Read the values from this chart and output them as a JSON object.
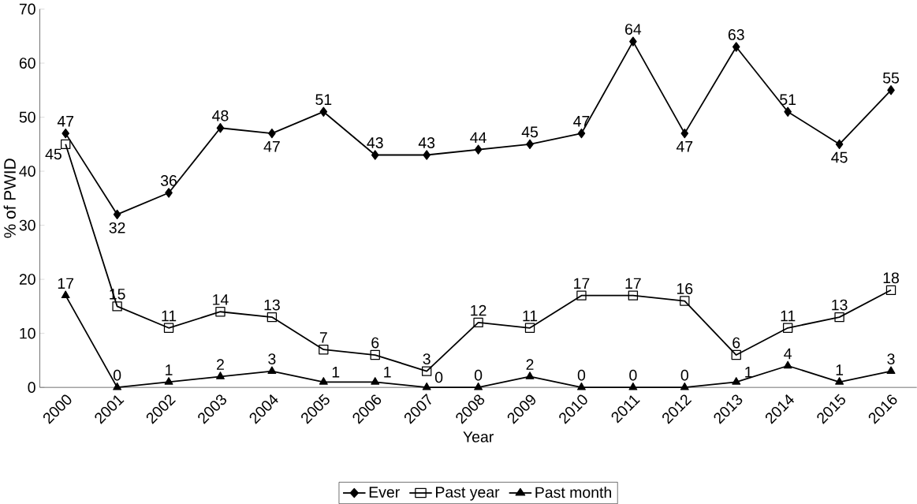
{
  "chart_data": {
    "type": "line",
    "xlabel": "Year",
    "ylabel": "% of PWID",
    "categories": [
      "2000",
      "2001",
      "2002",
      "2003",
      "2004",
      "2005",
      "2006",
      "2007",
      "2008",
      "2009",
      "2010",
      "2011",
      "2012",
      "2013",
      "2014",
      "2015",
      "2016"
    ],
    "series": [
      {
        "name": "Ever",
        "color": "#000000",
        "marker": "diamond",
        "values": [
          47,
          32,
          36,
          48,
          47,
          51,
          43,
          43,
          44,
          45,
          47,
          64,
          47,
          63,
          51,
          45,
          55
        ]
      },
      {
        "name": "Past year",
        "color": "#000000",
        "marker": "square",
        "values": [
          45,
          15,
          11,
          14,
          13,
          7,
          6,
          3,
          12,
          11,
          17,
          17,
          16,
          6,
          11,
          13,
          18
        ]
      },
      {
        "name": "Past month",
        "color": "#000000",
        "marker": "triangle",
        "values": [
          17,
          0,
          1,
          2,
          3,
          1,
          1,
          0,
          0,
          2,
          0,
          0,
          0,
          1,
          4,
          1,
          3
        ]
      }
    ],
    "ylim": [
      0,
      70
    ],
    "yticks": [
      0,
      10,
      20,
      30,
      40,
      50,
      60,
      70
    ],
    "data_labels": true,
    "legend": "bottom",
    "grid": false,
    "line_style": "solid"
  }
}
